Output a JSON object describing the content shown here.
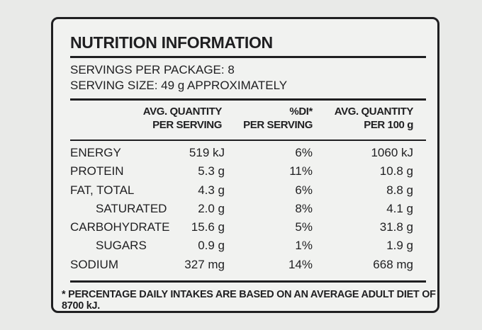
{
  "panel": {
    "title": "NUTRITION INFORMATION",
    "servings_per_package": "SERVINGS PER PACKAGE: 8",
    "serving_size": "SERVING SIZE: 49 g APPROXIMATELY"
  },
  "table": {
    "headers": [
      [
        "AVG. QUANTITY",
        "PER SERVING"
      ],
      [
        "%DI*",
        "PER SERVING"
      ],
      [
        "AVG. QUANTITY",
        "PER 100 g"
      ]
    ],
    "rows": [
      {
        "name": "ENERGY",
        "per_serving": "519 kJ",
        "di": "6%",
        "per_100g": "1060 kJ"
      },
      {
        "name": "PROTEIN",
        "per_serving": "5.3 g",
        "di": "11%",
        "per_100g": "10.8 g"
      },
      {
        "name": "FAT, TOTAL",
        "per_serving": "4.3 g",
        "di": "6%",
        "per_100g": "8.8 g"
      },
      {
        "name": "SATURATED",
        "per_serving": "2.0 g",
        "di": "8%",
        "per_100g": "4.1 g"
      },
      {
        "name": "CARBOHYDRATE",
        "per_serving": "15.6 g",
        "di": "5%",
        "per_100g": "31.8 g"
      },
      {
        "name": "SUGARS",
        "per_serving": "0.9 g",
        "di": "1%",
        "per_100g": "1.9 g"
      },
      {
        "name": "SODIUM",
        "per_serving": "327 mg",
        "di": "14%",
        "per_100g": "668 mg"
      }
    ]
  },
  "footnote": "* PERCENTAGE DAILY INTAKES ARE BASED ON AN AVERAGE ADULT DIET OF 8700 kJ."
}
